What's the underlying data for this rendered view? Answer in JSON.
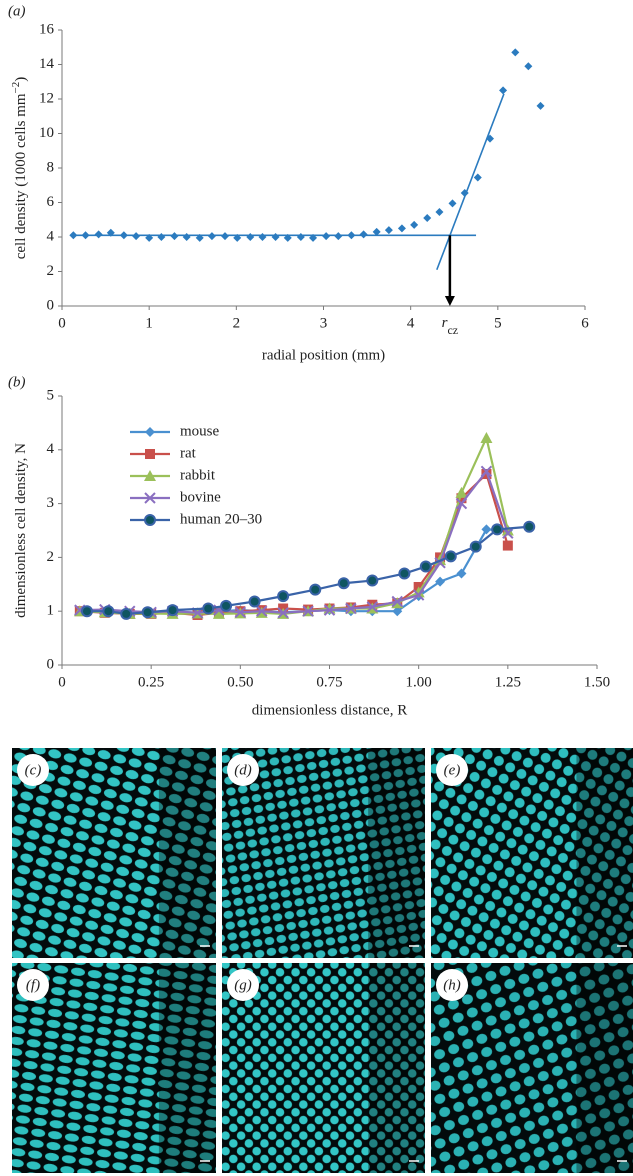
{
  "chart_data": [
    {
      "type": "scatter",
      "panel_label": "(a)",
      "xlabel": "radial position (mm)",
      "ylabel": "cell density (1000 cells mm",
      "ylabel_sup": "−2",
      "ylabel_end": ")",
      "xlim": [
        0,
        6
      ],
      "xticks": [
        0,
        1,
        2,
        3,
        4,
        5,
        6
      ],
      "ylim": [
        0,
        16
      ],
      "yticks": [
        0,
        2,
        4,
        6,
        8,
        10,
        12,
        14,
        16
      ],
      "color": "#2b7bbf",
      "marker": "diamond",
      "x": [
        0.13,
        0.27,
        0.42,
        0.56,
        0.71,
        0.85,
        1.0,
        1.14,
        1.29,
        1.43,
        1.58,
        1.72,
        1.87,
        2.01,
        2.16,
        2.3,
        2.45,
        2.59,
        2.74,
        2.88,
        3.03,
        3.17,
        3.32,
        3.46,
        3.61,
        3.75,
        3.9,
        4.04,
        4.19,
        4.33,
        4.48,
        4.62,
        4.77,
        4.91,
        5.06,
        5.2,
        5.35,
        5.49
      ],
      "values": [
        4.1,
        4.1,
        4.15,
        4.25,
        4.1,
        4.05,
        3.95,
        4.0,
        4.05,
        4.0,
        3.95,
        4.05,
        4.05,
        3.95,
        4.0,
        4.0,
        4.0,
        3.95,
        4.0,
        3.95,
        4.05,
        4.05,
        4.1,
        4.15,
        4.3,
        4.4,
        4.5,
        4.7,
        5.1,
        5.45,
        5.95,
        6.55,
        7.45,
        9.7,
        12.5,
        14.7,
        13.9,
        11.6
      ],
      "fits": [
        {
          "x": [
            0.1,
            4.75
          ],
          "values": [
            4.1,
            4.1
          ]
        },
        {
          "x": [
            4.3,
            5.07
          ],
          "values": [
            2.1,
            12.3
          ]
        }
      ],
      "annotation": {
        "text": "r",
        "subscript": "cz",
        "x": 4.45,
        "y": 4.1
      }
    },
    {
      "type": "line",
      "panel_label": "(b)",
      "xlabel": "dimensionless distance, R",
      "ylabel": "dimensionless cell density, N",
      "xlim": [
        0,
        1.5
      ],
      "xticks": [
        0,
        0.25,
        {
          "value": 0.5,
          "label": "0.50"
        },
        0.75,
        {
          "value": 1,
          "label": "1.00"
        },
        1.25,
        {
          "value": 1.5,
          "label": "1.50"
        }
      ],
      "ylim": [
        0,
        5
      ],
      "yticks": [
        0,
        1,
        2,
        3,
        4,
        5
      ],
      "legend": "upper left",
      "series": [
        {
          "name": "mouse",
          "color": "#4a90d0",
          "marker": "diamond",
          "x": [
            0.05,
            0.12,
            0.19,
            0.25,
            0.31,
            0.38,
            0.44,
            0.5,
            0.56,
            0.62,
            0.69,
            0.75,
            0.81,
            0.87,
            0.94,
            1.0,
            1.06,
            1.12,
            1.19,
            1.25
          ],
          "values": [
            1.0,
            0.98,
            0.97,
            0.98,
            1.0,
            0.97,
            1.0,
            1.02,
            1.0,
            0.98,
            1.0,
            1.02,
            1.0,
            1.0,
            1.0,
            1.28,
            1.55,
            1.7,
            2.52,
            2.5
          ]
        },
        {
          "name": "rat",
          "color": "#c9504b",
          "marker": "square",
          "x": [
            0.05,
            0.12,
            0.19,
            0.25,
            0.31,
            0.38,
            0.44,
            0.5,
            0.56,
            0.62,
            0.69,
            0.75,
            0.81,
            0.87,
            0.94,
            1.0,
            1.06,
            1.12,
            1.19,
            1.25
          ],
          "values": [
            1.0,
            0.97,
            0.95,
            0.95,
            0.97,
            0.93,
            0.97,
            1.0,
            1.02,
            1.05,
            1.03,
            1.05,
            1.07,
            1.12,
            1.15,
            1.45,
            2.0,
            3.1,
            3.55,
            2.22
          ]
        },
        {
          "name": "rabbit",
          "color": "#9bc05a",
          "marker": "triangle",
          "x": [
            0.05,
            0.12,
            0.19,
            0.25,
            0.31,
            0.38,
            0.44,
            0.5,
            0.56,
            0.62,
            0.69,
            0.75,
            0.81,
            0.87,
            0.94,
            1.0,
            1.06,
            1.12,
            1.19,
            1.25
          ],
          "values": [
            1.0,
            0.98,
            0.95,
            0.96,
            0.95,
            0.96,
            0.95,
            0.96,
            0.97,
            0.95,
            1.0,
            1.05,
            1.05,
            1.05,
            1.15,
            1.35,
            1.95,
            3.2,
            4.22,
            2.5
          ]
        },
        {
          "name": "bovine",
          "color": "#8a6fc0",
          "marker": "x",
          "x": [
            0.05,
            0.12,
            0.19,
            0.25,
            0.31,
            0.38,
            0.44,
            0.5,
            0.56,
            0.62,
            0.69,
            0.75,
            0.81,
            0.87,
            0.94,
            1.0,
            1.06,
            1.12,
            1.19,
            1.25
          ],
          "values": [
            1.02,
            1.03,
            1.0,
            0.98,
            1.0,
            0.97,
            1.02,
            0.98,
            1.0,
            0.97,
            1.0,
            1.02,
            1.05,
            1.08,
            1.18,
            1.3,
            1.9,
            3.0,
            3.6,
            2.45
          ]
        },
        {
          "name": "human 20–30",
          "color": "#3a63a8",
          "marker": "circle",
          "x": [
            0.07,
            0.13,
            0.18,
            0.24,
            0.31,
            0.41,
            0.46,
            0.54,
            0.62,
            0.71,
            0.79,
            0.87,
            0.96,
            1.02,
            1.09,
            1.16,
            1.22,
            1.31
          ],
          "values": [
            1.0,
            1.0,
            0.95,
            0.98,
            1.02,
            1.05,
            1.1,
            1.18,
            1.28,
            1.4,
            1.52,
            1.57,
            1.7,
            1.83,
            2.02,
            2.2,
            2.52,
            2.57
          ]
        }
      ]
    }
  ],
  "panels": {
    "labels": [
      "(c)",
      "(d)",
      "(e)",
      "(f)",
      "(g)",
      "(h)"
    ]
  }
}
